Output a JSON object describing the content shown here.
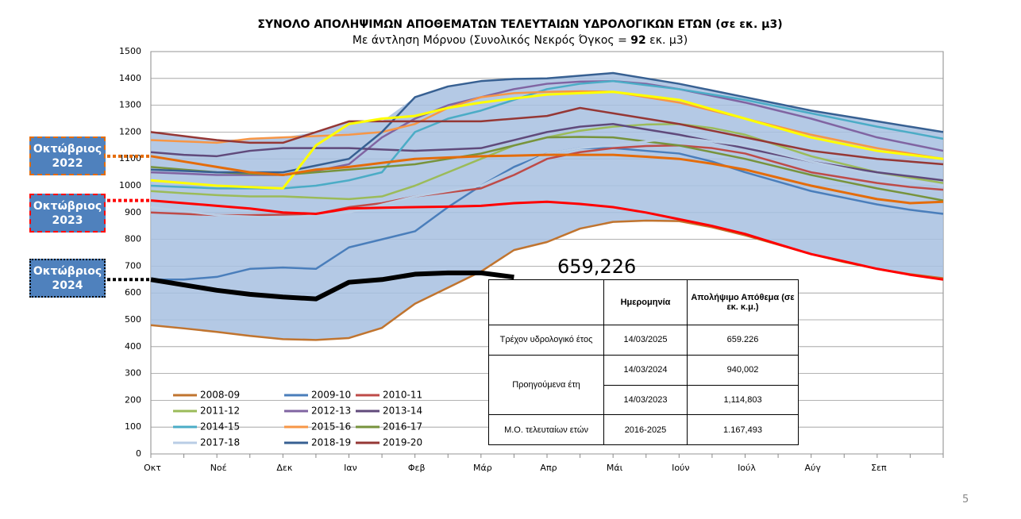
{
  "chart_data": {
    "type": "line",
    "title": "ΣΥΝΟΛΟ ΑΠΟΛΗΨΙΜΩΝ ΑΠΟΘΕΜΑΤΩΝ ΤΕΛΕΥΤΑΙΩΝ ΥΔΡΟΛΟΓΙΚΩΝ ΕΤΩΝ  (σε εκ. μ3)",
    "subtitle": [
      "Με άντληση Μόρνου (Συνολικός Νεκρός Όγκος = ",
      "92",
      " εκ. μ3)"
    ],
    "categories": [
      "Οκτ",
      null,
      "Νοέ",
      null,
      "Δεκ",
      null,
      "Ιαν",
      null,
      "Φεβ",
      null,
      "Μάρ",
      null,
      "Απρ",
      null,
      "Μάι",
      null,
      "Ιούν",
      null,
      "Ιούλ",
      null,
      "Αύγ",
      null,
      "Σεπ",
      null,
      null
    ],
    "ylim": [
      0,
      1500
    ],
    "yticks": [
      0,
      100,
      200,
      300,
      400,
      500,
      600,
      700,
      800,
      900,
      1000,
      1100,
      1200,
      1300,
      1400,
      1500
    ],
    "grid": true,
    "band_color": "#a7bfe1",
    "series": [
      {
        "name": "2008-09",
        "color": "#c0742f",
        "values": [
          480,
          468,
          455,
          440,
          428,
          425,
          432,
          470,
          560,
          620,
          680,
          760,
          790,
          840,
          865,
          870,
          868,
          845,
          815,
          780,
          745,
          715,
          690,
          670,
          655
        ]
      },
      {
        "name": "2009-10",
        "color": "#4a7ebb",
        "values": [
          650,
          650,
          660,
          690,
          695,
          690,
          770,
          800,
          830,
          920,
          1000,
          1070,
          1120,
          1140,
          1140,
          1130,
          1120,
          1090,
          1050,
          1015,
          980,
          955,
          930,
          910,
          895
        ]
      },
      {
        "name": "2010-11",
        "color": "#be4b48",
        "values": [
          900,
          895,
          890,
          890,
          892,
          895,
          920,
          935,
          960,
          975,
          990,
          1040,
          1100,
          1125,
          1140,
          1148,
          1150,
          1140,
          1120,
          1085,
          1050,
          1030,
          1010,
          995,
          985
        ]
      },
      {
        "name": "2011-12",
        "color": "#9bbb59",
        "values": [
          980,
          972,
          965,
          960,
          960,
          955,
          950,
          960,
          1000,
          1050,
          1100,
          1150,
          1180,
          1205,
          1220,
          1228,
          1230,
          1215,
          1190,
          1150,
          1110,
          1080,
          1050,
          1030,
          1010
        ]
      },
      {
        "name": "2012-13",
        "color": "#8064a2",
        "values": [
          1050,
          1045,
          1040,
          1040,
          1040,
          1055,
          1080,
          1180,
          1250,
          1300,
          1330,
          1360,
          1380,
          1388,
          1390,
          1380,
          1360,
          1335,
          1310,
          1280,
          1250,
          1215,
          1180,
          1155,
          1130
        ]
      },
      {
        "name": "2013-14",
        "color": "#604a7b",
        "values": [
          1125,
          1115,
          1110,
          1130,
          1140,
          1140,
          1140,
          1135,
          1130,
          1135,
          1140,
          1170,
          1200,
          1220,
          1230,
          1210,
          1190,
          1165,
          1140,
          1115,
          1090,
          1070,
          1050,
          1035,
          1020
        ]
      },
      {
        "name": "2014-15",
        "color": "#4bacc6",
        "values": [
          1000,
          995,
          990,
          990,
          990,
          1000,
          1020,
          1050,
          1200,
          1250,
          1280,
          1320,
          1360,
          1380,
          1390,
          1375,
          1360,
          1340,
          1320,
          1295,
          1270,
          1245,
          1220,
          1198,
          1175
        ]
      },
      {
        "name": "2015-16",
        "color": "#f79646",
        "values": [
          1170,
          1165,
          1160,
          1175,
          1180,
          1185,
          1190,
          1200,
          1230,
          1290,
          1330,
          1345,
          1350,
          1352,
          1350,
          1330,
          1310,
          1280,
          1250,
          1220,
          1190,
          1165,
          1140,
          1120,
          1100
        ]
      },
      {
        "name": "2016-17",
        "color": "#77933c",
        "values": [
          1070,
          1060,
          1050,
          1045,
          1040,
          1050,
          1060,
          1070,
          1080,
          1100,
          1120,
          1150,
          1180,
          1182,
          1180,
          1165,
          1150,
          1125,
          1100,
          1070,
          1040,
          1015,
          990,
          968,
          945
        ]
      },
      {
        "name": "2017-18",
        "color": "#b9cde5",
        "values": [
          920,
          905,
          890,
          885,
          880,
          890,
          900,
          930,
          960,
          980,
          1000,
          1060,
          1120,
          1140,
          1150,
          1165,
          1180,
          1165,
          1150,
          1120,
          1090,
          1065,
          1040,
          1020,
          1000
        ]
      },
      {
        "name": "2018-19",
        "color": "#376092",
        "values": [
          1060,
          1055,
          1050,
          1050,
          1050,
          1075,
          1100,
          1200,
          1330,
          1370,
          1390,
          1398,
          1400,
          1410,
          1420,
          1400,
          1380,
          1355,
          1330,
          1305,
          1280,
          1260,
          1240,
          1220,
          1200
        ]
      },
      {
        "name": "2019-20",
        "color": "#953735",
        "values": [
          1200,
          1185,
          1170,
          1160,
          1160,
          1200,
          1240,
          1240,
          1240,
          1240,
          1240,
          1250,
          1260,
          1290,
          1270,
          1250,
          1230,
          1205,
          1180,
          1155,
          1130,
          1115,
          1100,
          1090,
          1080
        ]
      },
      {
        "color": "#ffff00",
        "values": [
          1020,
          1010,
          1000,
          995,
          990,
          1150,
          1230,
          1250,
          1260,
          1290,
          1310,
          1325,
          1340,
          1345,
          1350,
          1335,
          1320,
          1285,
          1250,
          1215,
          1180,
          1155,
          1130,
          1115,
          1100
        ]
      },
      {
        "color": "#e46c0a",
        "values": [
          1110,
          1090,
          1070,
          1050,
          1040,
          1060,
          1070,
          1085,
          1100,
          1105,
          1110,
          1112,
          1115,
          1115,
          1115,
          1108,
          1100,
          1082,
          1060,
          1030,
          1000,
          975,
          950,
          935,
          940
        ]
      },
      {
        "color": "#ff0000",
        "values": [
          945,
          935,
          925,
          915,
          900,
          895,
          915,
          918,
          920,
          922,
          925,
          935,
          940,
          932,
          920,
          900,
          875,
          850,
          820,
          782,
          745,
          718,
          690,
          668,
          650
        ]
      },
      {
        "color": "#000000",
        "values": [
          650,
          630,
          610,
          595,
          585,
          578,
          640,
          650,
          670,
          675,
          675,
          659.226,
          null,
          null,
          null,
          null,
          null,
          null,
          null,
          null,
          null,
          null,
          null,
          null,
          null
        ]
      }
    ],
    "annotations": [
      {
        "text": "Οκτώβριος 2022",
        "color": "#e46c0a",
        "value": 1110
      },
      {
        "text": "Οκτώβριος 2023",
        "color": "#ff0000",
        "value": 945
      },
      {
        "text": "Οκτώβριος 2024",
        "color": "#000000",
        "value": 650
      }
    ],
    "current_label": "659,226"
  },
  "table": {
    "header": [
      "Ημερομηνία",
      "Απολήψιμο Απόθεμα (σε εκ. κ.μ.)"
    ],
    "current": {
      "label": "Τρέχον υδρολογικό έτος",
      "date": "14/03/2025",
      "value": "659.226"
    },
    "previous": {
      "label": "Προηγούμενα έτη",
      "rows": [
        {
          "date": "14/03/2024",
          "value": "940,002"
        },
        {
          "date": "14/03/2023",
          "value": "1,114,803"
        }
      ]
    },
    "average": {
      "label": "Μ.Ο.  τελευταίων ετών",
      "date": "2016-2025",
      "value": "1.167,493"
    }
  },
  "page_number": "5"
}
